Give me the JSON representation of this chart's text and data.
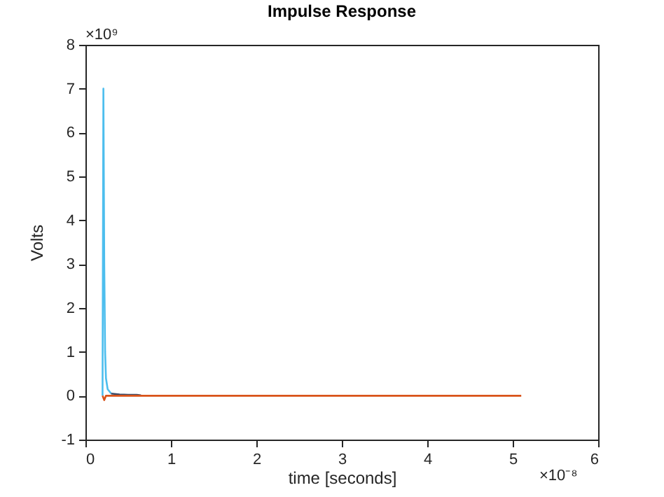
{
  "chart_data": {
    "type": "line",
    "title": "Impulse Response",
    "xlabel": "time [seconds]",
    "ylabel": "Volts",
    "annotations": [
      "×10⁹",
      "×10⁻⁸"
    ],
    "series": [
      {
        "color": "#4dbeee",
        "x": [
          0.2,
          0.21,
          0.22,
          0.23,
          0.24,
          0.26,
          0.28,
          0.3
        ],
        "values": [
          0,
          7.0,
          3.0,
          1.0,
          0.4,
          0.15,
          0.1,
          0.05
        ]
      },
      {
        "color": "#3c4a66",
        "x": [
          0.3,
          0.4,
          0.5,
          0.6,
          0.65
        ],
        "values": [
          0.05,
          0.03,
          0.02,
          0.02,
          0.01
        ]
      },
      {
        "color": "#d95319",
        "x": [
          0.2,
          0.22,
          0.24,
          5.1
        ],
        "values": [
          0,
          -0.1,
          0,
          0
        ]
      }
    ],
    "xlim": [
      0,
      6
    ],
    "xticks": [
      0,
      1,
      2,
      3,
      4,
      5,
      6
    ],
    "ylim": [
      -1,
      8
    ],
    "yticks": [
      -1,
      0,
      1,
      2,
      3,
      4,
      5,
      6,
      7,
      8
    ],
    "grid": false,
    "marker": "none",
    "line_style": "solid"
  }
}
